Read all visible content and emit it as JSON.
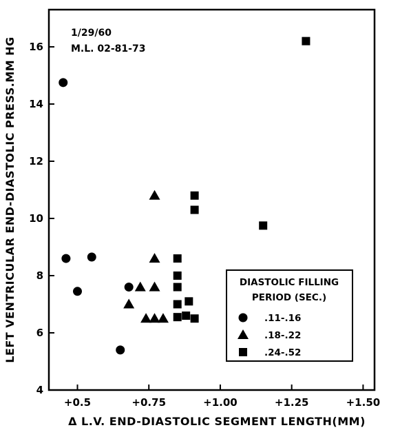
{
  "chart_data": {
    "type": "scatter",
    "title": "",
    "annotations": [
      "1/29/60",
      "M.L. 02-81-73"
    ],
    "xlabel": "Δ L.V. END-DIASTOLIC SEGMENT LENGTH(MM)",
    "ylabel": "LEFT VENTRICULAR END-DIASTOLIC PRESS.MM HG",
    "xlim": [
      0.4,
      1.54
    ],
    "ylim": [
      4,
      17.3
    ],
    "x_ticks": [
      0.5,
      0.75,
      1.0,
      1.25,
      1.5
    ],
    "x_tick_labels": [
      "+0.5",
      "+0.75",
      "+1.00",
      "+1.25",
      "+1.50"
    ],
    "y_ticks": [
      4,
      6,
      8,
      10,
      12,
      14,
      16
    ],
    "y_tick_labels": [
      "4",
      "6",
      "8",
      "10",
      "12",
      "14",
      "16"
    ],
    "legend": {
      "title_lines": [
        "DIASTOLIC FILLING",
        "PERIOD (SEC.)"
      ],
      "placement": "lower-right"
    },
    "series": [
      {
        "name": ".11-.16",
        "marker": "circle",
        "points": [
          [
            0.45,
            14.75
          ],
          [
            0.46,
            8.6
          ],
          [
            0.5,
            7.45
          ],
          [
            0.55,
            8.65
          ],
          [
            0.65,
            5.4
          ],
          [
            0.68,
            7.6
          ]
        ]
      },
      {
        "name": ".18-.22",
        "marker": "triangle",
        "points": [
          [
            0.68,
            7.0
          ],
          [
            0.72,
            7.6
          ],
          [
            0.74,
            6.5
          ],
          [
            0.77,
            10.8
          ],
          [
            0.77,
            8.6
          ],
          [
            0.77,
            7.6
          ],
          [
            0.77,
            6.5
          ],
          [
            0.8,
            6.5
          ]
        ]
      },
      {
        "name": ".24-.52",
        "marker": "square",
        "points": [
          [
            0.85,
            8.6
          ],
          [
            0.85,
            8.0
          ],
          [
            0.85,
            7.6
          ],
          [
            0.85,
            7.0
          ],
          [
            0.85,
            6.55
          ],
          [
            0.88,
            6.6
          ],
          [
            0.89,
            7.1
          ],
          [
            0.91,
            6.5
          ],
          [
            0.91,
            10.8
          ],
          [
            0.91,
            10.3
          ],
          [
            1.15,
            9.75
          ],
          [
            1.3,
            16.2
          ]
        ]
      }
    ]
  }
}
